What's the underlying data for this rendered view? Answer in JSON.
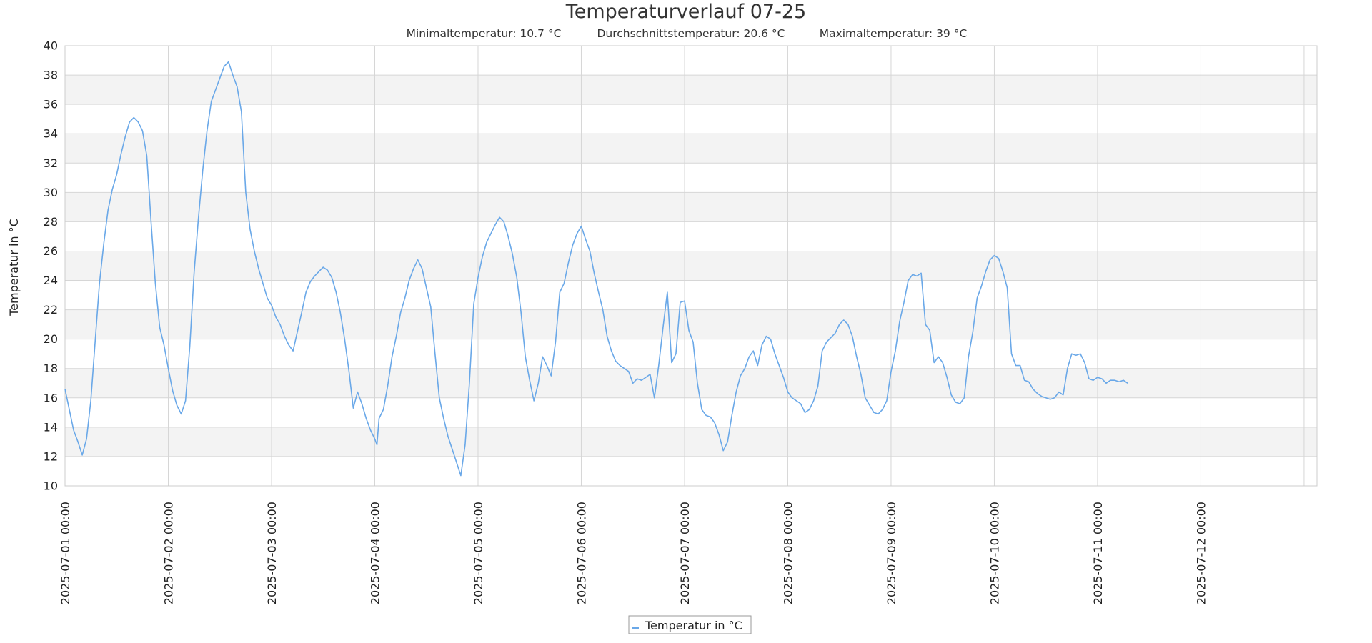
{
  "colors": {
    "series": "#6aa8e8",
    "band": "#f3f3f3",
    "grid": "#d6d6d6",
    "border": "#cccccc"
  },
  "chart_data": {
    "type": "line",
    "title": "Temperaturverlauf 07-25",
    "stats": [
      "Minimaltemperatur: 10.7 °C",
      "Durchschnittstemperatur: 20.6 °C",
      "Maximaltemperatur: 39 °C"
    ],
    "ylabel": "Temperatur in °C",
    "ylim": [
      10,
      40
    ],
    "xlim": [
      "2025-07-01 00:00",
      "2025-07-13 03:00"
    ],
    "yticks": [
      "10",
      "12",
      "14",
      "16",
      "18",
      "20",
      "22",
      "24",
      "26",
      "28",
      "30",
      "32",
      "34",
      "36",
      "38",
      "40"
    ],
    "xticks": [
      "2025-07-01 00:00",
      "2025-07-02 00:00",
      "2025-07-03 00:00",
      "2025-07-04 00:00",
      "2025-07-05 00:00",
      "2025-07-06 00:00",
      "2025-07-07 00:00",
      "2025-07-08 00:00",
      "2025-07-09 00:00",
      "2025-07-10 00:00",
      "2025-07-11 00:00",
      "2025-07-12 00:00"
    ],
    "alternating_bands": true,
    "grid": true,
    "legend_position": "bottom-center",
    "series": [
      {
        "name": "Temperatur in °C",
        "points": [
          [
            "2025-07-01 00:00",
            16.6
          ],
          [
            "2025-07-01 01:00",
            15.2
          ],
          [
            "2025-07-01 02:00",
            13.8
          ],
          [
            "2025-07-01 03:00",
            13.0
          ],
          [
            "2025-07-01 04:00",
            12.1
          ],
          [
            "2025-07-01 05:00",
            13.2
          ],
          [
            "2025-07-01 06:00",
            15.8
          ],
          [
            "2025-07-01 07:00",
            19.8
          ],
          [
            "2025-07-01 08:00",
            23.8
          ],
          [
            "2025-07-01 09:00",
            26.5
          ],
          [
            "2025-07-01 10:00",
            28.8
          ],
          [
            "2025-07-01 11:00",
            30.2
          ],
          [
            "2025-07-01 12:00",
            31.2
          ],
          [
            "2025-07-01 13:00",
            32.6
          ],
          [
            "2025-07-01 14:00",
            33.8
          ],
          [
            "2025-07-01 15:00",
            34.8
          ],
          [
            "2025-07-01 16:00",
            35.1
          ],
          [
            "2025-07-01 17:00",
            34.8
          ],
          [
            "2025-07-01 18:00",
            34.2
          ],
          [
            "2025-07-01 19:00",
            32.5
          ],
          [
            "2025-07-01 20:00",
            28.0
          ],
          [
            "2025-07-01 21:00",
            23.8
          ],
          [
            "2025-07-01 22:00",
            20.8
          ],
          [
            "2025-07-01 23:00",
            19.6
          ],
          [
            "2025-07-02 00:00",
            18.0
          ],
          [
            "2025-07-02 01:00",
            16.5
          ],
          [
            "2025-07-02 02:00",
            15.5
          ],
          [
            "2025-07-02 03:00",
            14.9
          ],
          [
            "2025-07-02 04:00",
            15.8
          ],
          [
            "2025-07-02 05:00",
            19.5
          ],
          [
            "2025-07-02 06:00",
            24.5
          ],
          [
            "2025-07-02 07:00",
            28.2
          ],
          [
            "2025-07-02 08:00",
            31.5
          ],
          [
            "2025-07-02 09:00",
            34.2
          ],
          [
            "2025-07-02 10:00",
            36.2
          ],
          [
            "2025-07-02 11:00",
            37.0
          ],
          [
            "2025-07-02 12:00",
            37.8
          ],
          [
            "2025-07-02 13:00",
            38.6
          ],
          [
            "2025-07-02 14:00",
            38.9
          ],
          [
            "2025-07-02 15:00",
            38.0
          ],
          [
            "2025-07-02 16:00",
            37.2
          ],
          [
            "2025-07-02 17:00",
            35.5
          ],
          [
            "2025-07-02 18:00",
            30.0
          ],
          [
            "2025-07-02 19:00",
            27.5
          ],
          [
            "2025-07-02 20:00",
            26.0
          ],
          [
            "2025-07-02 21:00",
            24.8
          ],
          [
            "2025-07-02 22:00",
            23.8
          ],
          [
            "2025-07-02 23:00",
            22.8
          ],
          [
            "2025-07-03 00:00",
            22.3
          ],
          [
            "2025-07-03 01:00",
            21.5
          ],
          [
            "2025-07-03 02:00",
            21.0
          ],
          [
            "2025-07-03 03:00",
            20.2
          ],
          [
            "2025-07-03 04:00",
            19.6
          ],
          [
            "2025-07-03 05:00",
            19.2
          ],
          [
            "2025-07-03 06:00",
            20.5
          ],
          [
            "2025-07-03 07:00",
            21.8
          ],
          [
            "2025-07-03 08:00",
            23.2
          ],
          [
            "2025-07-03 09:00",
            23.9
          ],
          [
            "2025-07-03 10:00",
            24.3
          ],
          [
            "2025-07-03 11:00",
            24.6
          ],
          [
            "2025-07-03 12:00",
            24.9
          ],
          [
            "2025-07-03 13:00",
            24.7
          ],
          [
            "2025-07-03 14:00",
            24.2
          ],
          [
            "2025-07-03 15:00",
            23.2
          ],
          [
            "2025-07-03 16:00",
            21.8
          ],
          [
            "2025-07-03 17:00",
            20.0
          ],
          [
            "2025-07-03 18:00",
            17.8
          ],
          [
            "2025-07-03 19:00",
            15.3
          ],
          [
            "2025-07-03 20:00",
            16.4
          ],
          [
            "2025-07-03 21:00",
            15.6
          ],
          [
            "2025-07-03 22:00",
            14.6
          ],
          [
            "2025-07-03 23:00",
            13.8
          ],
          [
            "2025-07-04 00:00",
            13.2
          ],
          [
            "2025-07-04 00:30",
            12.8
          ],
          [
            "2025-07-04 01:00",
            14.6
          ],
          [
            "2025-07-04 02:00",
            15.2
          ],
          [
            "2025-07-04 03:00",
            16.8
          ],
          [
            "2025-07-04 04:00",
            18.8
          ],
          [
            "2025-07-04 05:00",
            20.2
          ],
          [
            "2025-07-04 06:00",
            21.8
          ],
          [
            "2025-07-04 07:00",
            22.8
          ],
          [
            "2025-07-04 08:00",
            24.0
          ],
          [
            "2025-07-04 09:00",
            24.8
          ],
          [
            "2025-07-04 10:00",
            25.4
          ],
          [
            "2025-07-04 11:00",
            24.8
          ],
          [
            "2025-07-04 12:00",
            23.5
          ],
          [
            "2025-07-04 13:00",
            22.2
          ],
          [
            "2025-07-04 14:00",
            19.0
          ],
          [
            "2025-07-04 15:00",
            16.0
          ],
          [
            "2025-07-04 16:00",
            14.6
          ],
          [
            "2025-07-04 17:00",
            13.4
          ],
          [
            "2025-07-04 18:00",
            12.5
          ],
          [
            "2025-07-04 19:00",
            11.6
          ],
          [
            "2025-07-04 20:00",
            10.7
          ],
          [
            "2025-07-04 21:00",
            12.8
          ],
          [
            "2025-07-04 22:00",
            17.0
          ],
          [
            "2025-07-04 23:00",
            22.4
          ],
          [
            "2025-07-05 00:00",
            24.2
          ],
          [
            "2025-07-05 01:00",
            25.6
          ],
          [
            "2025-07-05 02:00",
            26.6
          ],
          [
            "2025-07-05 03:00",
            27.2
          ],
          [
            "2025-07-05 04:00",
            27.8
          ],
          [
            "2025-07-05 05:00",
            28.3
          ],
          [
            "2025-07-05 06:00",
            28.0
          ],
          [
            "2025-07-05 07:00",
            27.0
          ],
          [
            "2025-07-05 08:00",
            25.8
          ],
          [
            "2025-07-05 09:00",
            24.2
          ],
          [
            "2025-07-05 10:00",
            21.8
          ],
          [
            "2025-07-05 11:00",
            18.8
          ],
          [
            "2025-07-05 12:00",
            17.2
          ],
          [
            "2025-07-05 13:00",
            15.8
          ],
          [
            "2025-07-05 14:00",
            17.0
          ],
          [
            "2025-07-05 15:00",
            18.8
          ],
          [
            "2025-07-05 16:00",
            18.2
          ],
          [
            "2025-07-05 17:00",
            17.5
          ],
          [
            "2025-07-05 18:00",
            19.8
          ],
          [
            "2025-07-05 19:00",
            23.2
          ],
          [
            "2025-07-05 20:00",
            23.8
          ],
          [
            "2025-07-05 21:00",
            25.2
          ],
          [
            "2025-07-05 22:00",
            26.4
          ],
          [
            "2025-07-05 23:00",
            27.2
          ],
          [
            "2025-07-06 00:00",
            27.7
          ],
          [
            "2025-07-06 01:00",
            26.8
          ],
          [
            "2025-07-06 02:00",
            26.0
          ],
          [
            "2025-07-06 03:00",
            24.5
          ],
          [
            "2025-07-06 04:00",
            23.2
          ],
          [
            "2025-07-06 05:00",
            22.0
          ],
          [
            "2025-07-06 06:00",
            20.2
          ],
          [
            "2025-07-06 07:00",
            19.2
          ],
          [
            "2025-07-06 08:00",
            18.5
          ],
          [
            "2025-07-06 09:00",
            18.2
          ],
          [
            "2025-07-06 10:00",
            18.0
          ],
          [
            "2025-07-06 11:00",
            17.8
          ],
          [
            "2025-07-06 12:00",
            17.0
          ],
          [
            "2025-07-06 13:00",
            17.3
          ],
          [
            "2025-07-06 14:00",
            17.2
          ],
          [
            "2025-07-06 15:00",
            17.4
          ],
          [
            "2025-07-06 16:00",
            17.6
          ],
          [
            "2025-07-06 17:00",
            16.0
          ],
          [
            "2025-07-06 18:00",
            18.2
          ],
          [
            "2025-07-06 19:00",
            20.8
          ],
          [
            "2025-07-06 20:00",
            23.2
          ],
          [
            "2025-07-06 21:00",
            18.4
          ],
          [
            "2025-07-06 22:00",
            19.0
          ],
          [
            "2025-07-06 23:00",
            22.5
          ],
          [
            "2025-07-07 00:00",
            22.6
          ],
          [
            "2025-07-07 01:00",
            20.6
          ],
          [
            "2025-07-07 02:00",
            19.8
          ],
          [
            "2025-07-07 03:00",
            17.0
          ],
          [
            "2025-07-07 04:00",
            15.2
          ],
          [
            "2025-07-07 05:00",
            14.8
          ],
          [
            "2025-07-07 06:00",
            14.7
          ],
          [
            "2025-07-07 07:00",
            14.3
          ],
          [
            "2025-07-07 08:00",
            13.5
          ],
          [
            "2025-07-07 09:00",
            12.4
          ],
          [
            "2025-07-07 10:00",
            13.0
          ],
          [
            "2025-07-07 11:00",
            14.8
          ],
          [
            "2025-07-07 12:00",
            16.4
          ],
          [
            "2025-07-07 13:00",
            17.5
          ],
          [
            "2025-07-07 14:00",
            18.0
          ],
          [
            "2025-07-07 15:00",
            18.8
          ],
          [
            "2025-07-07 16:00",
            19.2
          ],
          [
            "2025-07-07 17:00",
            18.2
          ],
          [
            "2025-07-07 18:00",
            19.6
          ],
          [
            "2025-07-07 19:00",
            20.2
          ],
          [
            "2025-07-07 20:00",
            20.0
          ],
          [
            "2025-07-07 21:00",
            19.0
          ],
          [
            "2025-07-07 22:00",
            18.2
          ],
          [
            "2025-07-07 23:00",
            17.4
          ],
          [
            "2025-07-08 00:00",
            16.4
          ],
          [
            "2025-07-08 01:00",
            16.0
          ],
          [
            "2025-07-08 02:00",
            15.8
          ],
          [
            "2025-07-08 03:00",
            15.6
          ],
          [
            "2025-07-08 04:00",
            15.0
          ],
          [
            "2025-07-08 05:00",
            15.2
          ],
          [
            "2025-07-08 06:00",
            15.8
          ],
          [
            "2025-07-08 07:00",
            16.8
          ],
          [
            "2025-07-08 08:00",
            19.2
          ],
          [
            "2025-07-08 09:00",
            19.8
          ],
          [
            "2025-07-08 10:00",
            20.1
          ],
          [
            "2025-07-08 11:00",
            20.4
          ],
          [
            "2025-07-08 12:00",
            21.0
          ],
          [
            "2025-07-08 13:00",
            21.3
          ],
          [
            "2025-07-08 14:00",
            21.0
          ],
          [
            "2025-07-08 15:00",
            20.2
          ],
          [
            "2025-07-08 16:00",
            18.8
          ],
          [
            "2025-07-08 17:00",
            17.6
          ],
          [
            "2025-07-08 18:00",
            16.0
          ],
          [
            "2025-07-08 19:00",
            15.5
          ],
          [
            "2025-07-08 20:00",
            15.0
          ],
          [
            "2025-07-08 21:00",
            14.9
          ],
          [
            "2025-07-08 22:00",
            15.2
          ],
          [
            "2025-07-08 23:00",
            15.8
          ],
          [
            "2025-07-09 00:00",
            17.8
          ],
          [
            "2025-07-09 01:00",
            19.2
          ],
          [
            "2025-07-09 02:00",
            21.2
          ],
          [
            "2025-07-09 03:00",
            22.5
          ],
          [
            "2025-07-09 04:00",
            24.0
          ],
          [
            "2025-07-09 05:00",
            24.4
          ],
          [
            "2025-07-09 06:00",
            24.3
          ],
          [
            "2025-07-09 07:00",
            24.5
          ],
          [
            "2025-07-09 08:00",
            21.0
          ],
          [
            "2025-07-09 09:00",
            20.6
          ],
          [
            "2025-07-09 10:00",
            18.4
          ],
          [
            "2025-07-09 11:00",
            18.8
          ],
          [
            "2025-07-09 12:00",
            18.4
          ],
          [
            "2025-07-09 13:00",
            17.4
          ],
          [
            "2025-07-09 14:00",
            16.2
          ],
          [
            "2025-07-09 15:00",
            15.7
          ],
          [
            "2025-07-09 16:00",
            15.6
          ],
          [
            "2025-07-09 17:00",
            16.0
          ],
          [
            "2025-07-09 18:00",
            18.8
          ],
          [
            "2025-07-09 19:00",
            20.5
          ],
          [
            "2025-07-09 20:00",
            22.8
          ],
          [
            "2025-07-09 21:00",
            23.6
          ],
          [
            "2025-07-09 22:00",
            24.6
          ],
          [
            "2025-07-09 23:00",
            25.4
          ],
          [
            "2025-07-10 00:00",
            25.7
          ],
          [
            "2025-07-10 01:00",
            25.5
          ],
          [
            "2025-07-10 02:00",
            24.6
          ],
          [
            "2025-07-10 03:00",
            23.5
          ],
          [
            "2025-07-10 04:00",
            19.0
          ],
          [
            "2025-07-10 05:00",
            18.2
          ],
          [
            "2025-07-10 06:00",
            18.2
          ],
          [
            "2025-07-10 07:00",
            17.2
          ],
          [
            "2025-07-10 08:00",
            17.1
          ],
          [
            "2025-07-10 09:00",
            16.6
          ],
          [
            "2025-07-10 10:00",
            16.3
          ],
          [
            "2025-07-10 11:00",
            16.1
          ],
          [
            "2025-07-10 12:00",
            16.0
          ],
          [
            "2025-07-10 13:00",
            15.9
          ],
          [
            "2025-07-10 14:00",
            16.0
          ],
          [
            "2025-07-10 15:00",
            16.4
          ],
          [
            "2025-07-10 16:00",
            16.2
          ],
          [
            "2025-07-10 17:00",
            18.0
          ],
          [
            "2025-07-10 18:00",
            19.0
          ],
          [
            "2025-07-10 19:00",
            18.9
          ],
          [
            "2025-07-10 20:00",
            19.0
          ],
          [
            "2025-07-10 21:00",
            18.4
          ],
          [
            "2025-07-10 22:00",
            17.3
          ],
          [
            "2025-07-10 23:00",
            17.2
          ],
          [
            "2025-07-11 00:00",
            17.4
          ],
          [
            "2025-07-11 01:00",
            17.3
          ],
          [
            "2025-07-11 02:00",
            17.0
          ],
          [
            "2025-07-11 03:00",
            17.2
          ],
          [
            "2025-07-11 04:00",
            17.2
          ],
          [
            "2025-07-11 05:00",
            17.1
          ],
          [
            "2025-07-11 06:00",
            17.2
          ],
          [
            "2025-07-11 07:00",
            17.0
          ]
        ]
      }
    ]
  }
}
